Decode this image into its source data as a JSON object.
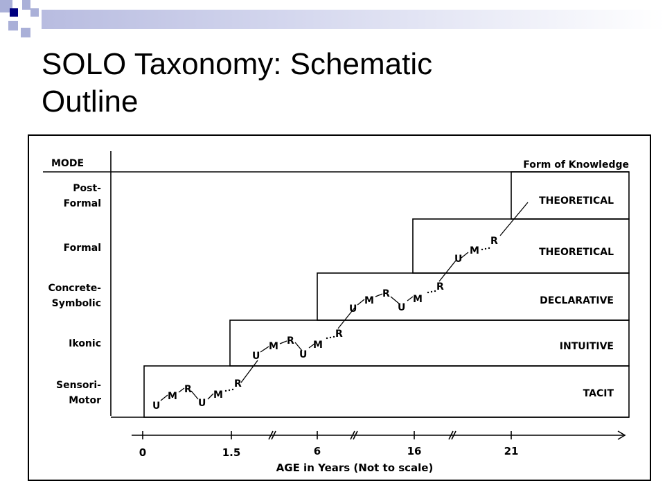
{
  "slide": {
    "title_line1": "SOLO Taxonomy: Schematic",
    "title_line2": "Outline"
  },
  "diagram": {
    "mode_header": "MODE",
    "knowledge_header": "Form of Knowledge",
    "modes": [
      {
        "line1": "Post-",
        "line2": "Formal"
      },
      {
        "line1": "Formal",
        "line2": ""
      },
      {
        "line1": "Concrete-",
        "line2": "Symbolic"
      },
      {
        "line1": "Ikonic",
        "line2": ""
      },
      {
        "line1": "Sensori-",
        "line2": "Motor"
      }
    ],
    "knowledge_forms": [
      "THEORETICAL",
      "THEORETICAL",
      "DECLARATIVE",
      "INTUITIVE",
      "TACIT"
    ],
    "cycle_letters": {
      "unistructural": "U",
      "multistructural": "M",
      "relational": "R"
    },
    "ages": [
      "0",
      "1.5",
      "6",
      "16",
      "21"
    ],
    "axis_label": "AGE in Years (Not to scale)"
  },
  "colors": {
    "accent_navy": "#000080",
    "accent_lavender": "#aab0d8",
    "ink": "#000000"
  }
}
